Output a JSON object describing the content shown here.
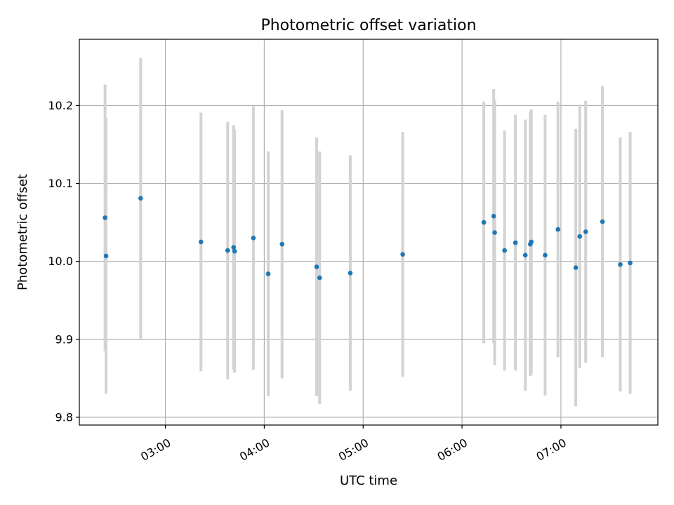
{
  "chart_data": {
    "type": "scatter",
    "title": "Photometric offset variation",
    "xlabel": "UTC time",
    "ylabel": "Photometric offset",
    "x_unit": "hours UTC",
    "xlim": [
      2.13,
      7.98
    ],
    "ylim": [
      9.79,
      10.285
    ],
    "x_ticks": [
      {
        "value": 3,
        "label": "03:00"
      },
      {
        "value": 4,
        "label": "04:00"
      },
      {
        "value": 5,
        "label": "05:00"
      },
      {
        "value": 6,
        "label": "06:00"
      },
      {
        "value": 7,
        "label": "07:00"
      }
    ],
    "y_ticks": [
      {
        "value": 9.8,
        "label": "9.8"
      },
      {
        "value": 9.9,
        "label": "9.9"
      },
      {
        "value": 10.0,
        "label": "10.0"
      },
      {
        "value": 10.1,
        "label": "10.1"
      },
      {
        "value": 10.2,
        "label": "10.2"
      }
    ],
    "grid": true,
    "colors": {
      "point": "#1f77b4",
      "errorbar": "#d3d3d3",
      "grid": "#b0b0b0"
    },
    "points": [
      {
        "x": 2.39,
        "y": 10.056,
        "err": 0.171
      },
      {
        "x": 2.4,
        "y": 10.007,
        "err": 0.177
      },
      {
        "x": 2.75,
        "y": 10.081,
        "err": 0.18
      },
      {
        "x": 3.36,
        "y": 10.025,
        "err": 0.166
      },
      {
        "x": 3.63,
        "y": 10.014,
        "err": 0.165
      },
      {
        "x": 3.69,
        "y": 10.018,
        "err": 0.157
      },
      {
        "x": 3.7,
        "y": 10.013,
        "err": 0.156
      },
      {
        "x": 3.89,
        "y": 10.03,
        "err": 0.169
      },
      {
        "x": 4.04,
        "y": 9.984,
        "err": 0.157
      },
      {
        "x": 4.18,
        "y": 10.022,
        "err": 0.172
      },
      {
        "x": 4.53,
        "y": 9.993,
        "err": 0.166
      },
      {
        "x": 4.56,
        "y": 9.979,
        "err": 0.162
      },
      {
        "x": 4.87,
        "y": 9.985,
        "err": 0.151
      },
      {
        "x": 5.4,
        "y": 10.009,
        "err": 0.157
      },
      {
        "x": 6.22,
        "y": 10.05,
        "err": 0.155
      },
      {
        "x": 6.32,
        "y": 10.058,
        "err": 0.163
      },
      {
        "x": 6.33,
        "y": 10.037,
        "err": 0.17
      },
      {
        "x": 6.43,
        "y": 10.014,
        "err": 0.154
      },
      {
        "x": 6.54,
        "y": 10.024,
        "err": 0.164
      },
      {
        "x": 6.64,
        "y": 10.008,
        "err": 0.174
      },
      {
        "x": 6.69,
        "y": 10.022,
        "err": 0.169
      },
      {
        "x": 6.7,
        "y": 10.025,
        "err": 0.17
      },
      {
        "x": 6.84,
        "y": 10.008,
        "err": 0.18
      },
      {
        "x": 6.97,
        "y": 10.041,
        "err": 0.164
      },
      {
        "x": 7.15,
        "y": 9.992,
        "err": 0.178
      },
      {
        "x": 7.19,
        "y": 10.032,
        "err": 0.169
      },
      {
        "x": 7.25,
        "y": 10.038,
        "err": 0.168
      },
      {
        "x": 7.42,
        "y": 10.051,
        "err": 0.174
      },
      {
        "x": 7.6,
        "y": 9.996,
        "err": 0.163
      },
      {
        "x": 7.7,
        "y": 9.998,
        "err": 0.168
      }
    ]
  }
}
